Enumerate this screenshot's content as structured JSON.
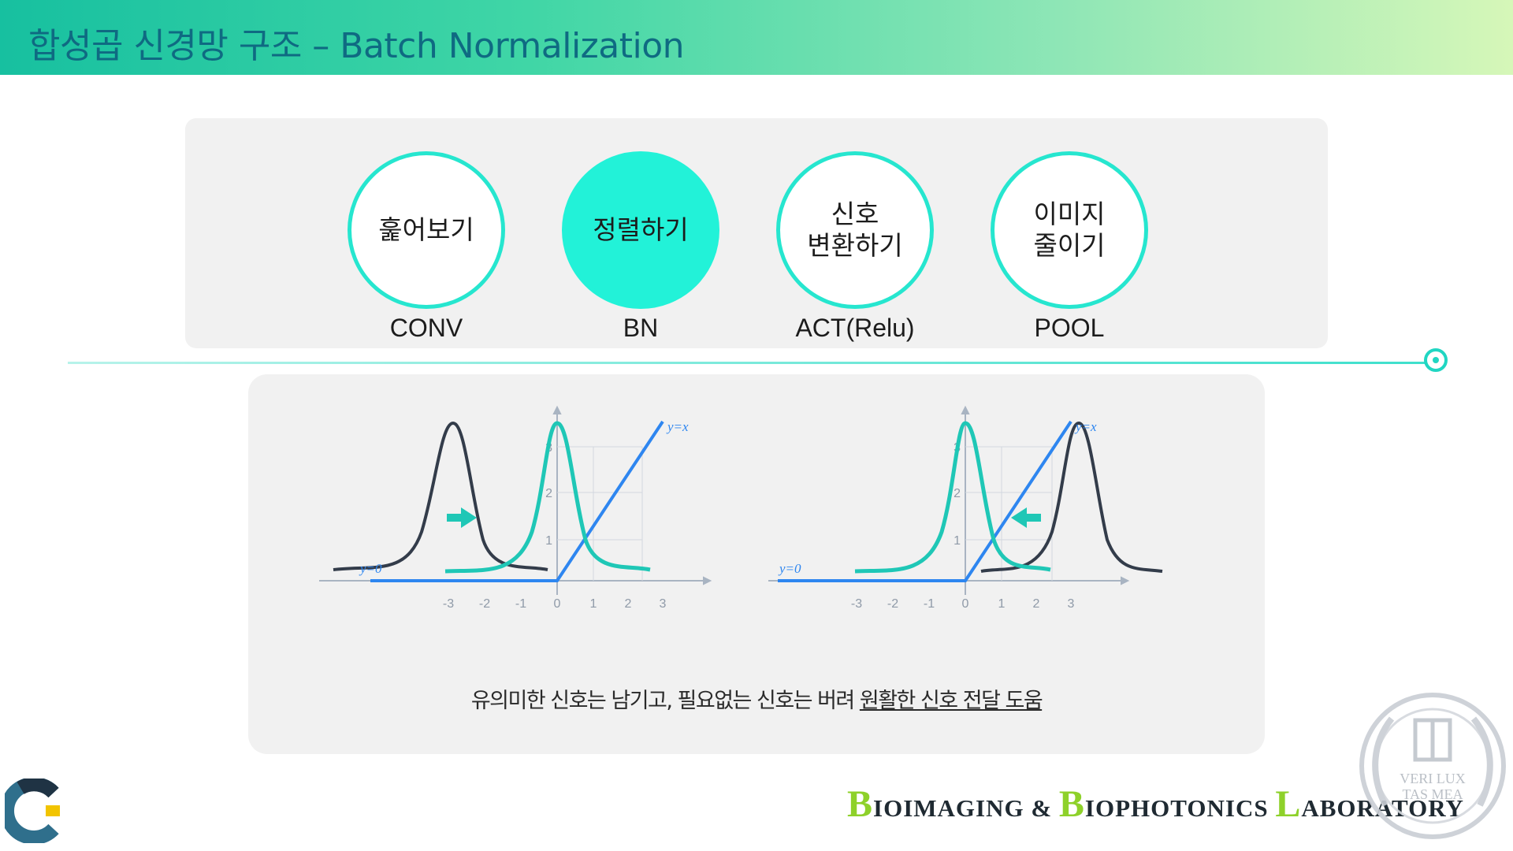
{
  "header": {
    "title": "합성곱 신경망 구조 – Batch Normalization"
  },
  "steps": [
    {
      "text": "훑어보기",
      "label": "CONV"
    },
    {
      "text": "정렬하기",
      "label": "BN"
    },
    {
      "text": "신호\n변환하기",
      "label": "ACT(Relu)"
    },
    {
      "text": "이미지\n줄이기",
      "label": "POOL"
    }
  ],
  "graphs": {
    "relu_label": "y=x",
    "zero_label": "y=0",
    "x_ticks": [
      "-3",
      "-2",
      "-1",
      "0",
      "1",
      "2",
      "3"
    ],
    "y_ticks": [
      "1",
      "2",
      "3"
    ]
  },
  "caption": {
    "text": "유의미한 신호는 남기고, 필요없는 신호는 버려 ",
    "emphasis": "원활한 신호 전달 도움"
  },
  "footer": {
    "lab_b1": "B",
    "lab_w1": "IOIMAGING & ",
    "lab_b2": "B",
    "lab_w2": "IOPHOTONICS ",
    "lab_l": "L",
    "lab_w3": "ABORATORY",
    "seal_text_1": "VERI LUX",
    "seal_text_2": "TAS MEA"
  },
  "colors": {
    "accent": "#22f2d8",
    "curve": "#1fc7b6",
    "dark_curve": "#333c4a",
    "relu": "#2e86f0"
  }
}
